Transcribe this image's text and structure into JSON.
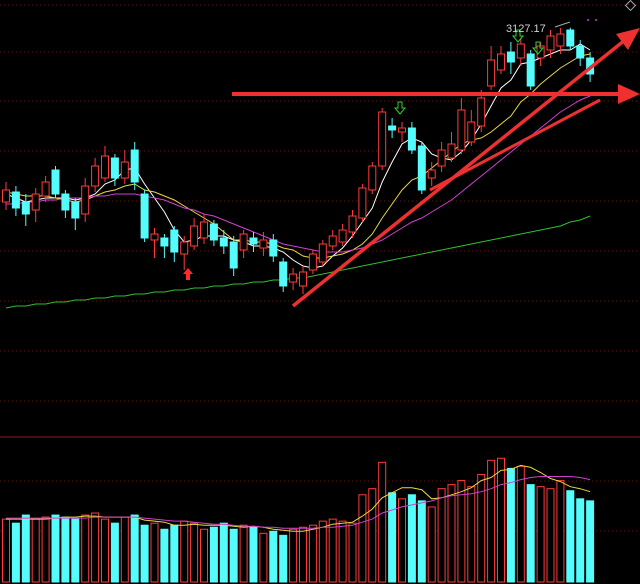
{
  "chart_data": {
    "type": "candlestick",
    "up_color": "#ff3b3b",
    "down_color": "#54fcfc",
    "ylim": [
      2924,
      3141
    ],
    "open": [
      3040,
      3045,
      3040,
      3036,
      3043,
      3056,
      3044,
      3040,
      3034,
      3048,
      3052,
      3062,
      3052,
      3066,
      3044,
      3021,
      3022,
      3026,
      3014,
      3018,
      3022,
      3029,
      3022,
      3020,
      3016,
      3022,
      3017,
      3021,
      3010,
      3000,
      2998,
      3006,
      3010,
      3018,
      3020,
      3025,
      3032,
      3046,
      3058,
      3078,
      3075,
      3077,
      3068,
      3052,
      3058,
      3062,
      3066,
      3070,
      3078,
      3098,
      3106,
      3115,
      3112,
      3114,
      3112,
      3116,
      3118,
      3126,
      3118,
      3112
    ],
    "high": [
      3050,
      3048,
      3044,
      3047,
      3053,
      3058,
      3046,
      3042,
      3052,
      3062,
      3068,
      3064,
      3066,
      3070,
      3046,
      3027,
      3024,
      3028,
      3023,
      3032,
      3034,
      3031,
      3026,
      3023,
      3026,
      3025,
      3025,
      3024,
      3012,
      3007,
      3008,
      3016,
      3021,
      3026,
      3029,
      3036,
      3049,
      3060,
      3087,
      3082,
      3080,
      3080,
      3070,
      3060,
      3070,
      3075,
      3092,
      3086,
      3096,
      3118,
      3118,
      3120,
      3122,
      3116,
      3120,
      3126,
      3127,
      3127.17,
      3121,
      3115
    ],
    "low": [
      3036,
      3033,
      3028,
      3030,
      3040,
      3042,
      3032,
      3026,
      3030,
      3045,
      3050,
      3048,
      3049,
      3046,
      3020,
      3012,
      3012,
      3010,
      3006,
      3016,
      3019,
      3018,
      3014,
      3003,
      3012,
      3015,
      3013,
      3010,
      2995,
      2996,
      2994,
      3004,
      3008,
      3016,
      3018,
      3022,
      3030,
      3044,
      3056,
      3072,
      3070,
      3064,
      3044,
      3048,
      3055,
      3060,
      3064,
      3068,
      3075,
      3096,
      3104,
      3104,
      3108,
      3096,
      3108,
      3112,
      3114,
      3116,
      3108,
      3100
    ],
    "close": [
      3046,
      3037,
      3034,
      3044,
      3050,
      3044,
      3036,
      3032,
      3048,
      3058,
      3063,
      3052,
      3060,
      3050,
      3022,
      3024,
      3018,
      3015,
      3020,
      3028,
      3030,
      3021,
      3018,
      3007,
      3024,
      3019,
      3021,
      3013,
      2998,
      3004,
      3005,
      3014,
      3019,
      3023,
      3026,
      3033,
      3047,
      3058,
      3085,
      3076,
      3077,
      3066,
      3046,
      3056,
      3066,
      3069,
      3086,
      3080,
      3092,
      3111,
      3114,
      3110,
      3119,
      3098,
      3118,
      3123,
      3124,
      3118,
      3112,
      3104
    ],
    "ma": [
      {
        "color": "#ffffff",
        "values": [
          3044,
          3042,
          3040,
          3041,
          3042,
          3042,
          3042,
          3041,
          3042,
          3044,
          3049,
          3051,
          3056,
          3057,
          3049,
          3042,
          3035,
          3026,
          3020,
          3021,
          3023,
          3023,
          3023,
          3021,
          3020,
          3018,
          3018,
          3017,
          3015,
          3011,
          3008,
          3007,
          3008,
          3013,
          3017,
          3023,
          3030,
          3037,
          3050,
          3060,
          3069,
          3072,
          3070,
          3064,
          3062,
          3061,
          3065,
          3071,
          3079,
          3088,
          3097,
          3101,
          3109,
          3110,
          3112,
          3114,
          3116,
          3116,
          3119,
          3116
        ]
      },
      {
        "color": "#e8d840",
        "values": [
          3045,
          3044,
          3043,
          3043,
          3043,
          3042,
          3041,
          3040,
          3041,
          3043,
          3045,
          3046,
          3048,
          3049,
          3046,
          3045,
          3043,
          3041,
          3038,
          3035,
          3032,
          3029,
          3025,
          3021,
          3021,
          3020,
          3020,
          3019,
          3017,
          3016,
          3013,
          3012,
          3012,
          3013,
          3014,
          3016,
          3019,
          3024,
          3032,
          3039,
          3046,
          3051,
          3053,
          3057,
          3061,
          3065,
          3069,
          3071,
          3072,
          3075,
          3079,
          3083,
          3090,
          3094,
          3099,
          3103,
          3107,
          3110,
          3113,
          3114
        ]
      },
      {
        "color": "#d040d0",
        "values": [
          3039,
          3039,
          3040,
          3040,
          3041,
          3041,
          3042,
          3042,
          3042,
          3043,
          3043,
          3044,
          3044,
          3044,
          3043,
          3042,
          3041,
          3039,
          3037,
          3036,
          3034,
          3033,
          3031,
          3029,
          3027,
          3025,
          3023,
          3021,
          3019,
          3018,
          3017,
          3016,
          3015,
          3015,
          3015,
          3016,
          3017,
          3019,
          3021,
          3024,
          3027,
          3030,
          3032,
          3035,
          3038,
          3041,
          3045,
          3049,
          3053,
          3057,
          3061,
          3065,
          3069,
          3073,
          3077,
          3081,
          3085,
          3088,
          3091,
          3093
        ]
      },
      {
        "color": "#2fc02f",
        "values": [
          2987,
          2988,
          2988,
          2989,
          2989,
          2990,
          2990,
          2991,
          2991,
          2992,
          2992,
          2993,
          2993,
          2994,
          2994,
          2995,
          2995,
          2996,
          2996,
          2997,
          2997,
          2998,
          2998,
          2999,
          2999,
          3000,
          3000,
          3001,
          3001,
          3002,
          3002,
          3003,
          3004,
          3005,
          3006,
          3007,
          3008,
          3009,
          3010,
          3011,
          3012,
          3013,
          3014,
          3015,
          3016,
          3017,
          3018,
          3019,
          3020,
          3021,
          3022,
          3023,
          3024,
          3025,
          3026,
          3027,
          3028,
          3030,
          3031,
          3033
        ]
      }
    ],
    "volume": {
      "ylim": [
        0,
        140
      ],
      "values": [
        62,
        58,
        66,
        62,
        64,
        66,
        64,
        62,
        66,
        68,
        62,
        58,
        64,
        66,
        56,
        58,
        52,
        56,
        60,
        58,
        52,
        54,
        58,
        52,
        56,
        54,
        48,
        50,
        46,
        52,
        54,
        56,
        60,
        62,
        60,
        58,
        86,
        92,
        118,
        88,
        82,
        86,
        80,
        74,
        92,
        96,
        100,
        94,
        106,
        120,
        122,
        112,
        114,
        96,
        94,
        92,
        100,
        90,
        82,
        80
      ],
      "ma": [
        {
          "color": "#e8d840",
          "values": [
            62,
            62,
            62,
            62,
            62,
            63,
            64,
            64,
            65,
            65,
            64,
            64,
            64,
            64,
            61,
            60,
            59,
            56,
            56,
            57,
            56,
            56,
            56,
            55,
            54,
            55,
            54,
            52,
            51,
            50,
            50,
            52,
            54,
            57,
            58,
            59,
            65,
            72,
            83,
            88,
            93,
            93,
            91,
            82,
            83,
            86,
            89,
            93,
            100,
            103,
            110,
            111,
            115,
            113,
            108,
            102,
            99,
            94,
            92,
            89
          ]
        },
        {
          "color": "#d040d0",
          "values": [
            63,
            63,
            63,
            63,
            63,
            63,
            63,
            63,
            63,
            64,
            64,
            64,
            64,
            64,
            63,
            62,
            61,
            60,
            60,
            59,
            58,
            57,
            57,
            56,
            55,
            55,
            54,
            54,
            53,
            53,
            53,
            53,
            54,
            54,
            55,
            56,
            59,
            62,
            68,
            71,
            74,
            76,
            78,
            80,
            83,
            85,
            86,
            87,
            89,
            92,
            96,
            98,
            101,
            103,
            104,
            104,
            104,
            104,
            103,
            101
          ]
        }
      ]
    }
  }
}
